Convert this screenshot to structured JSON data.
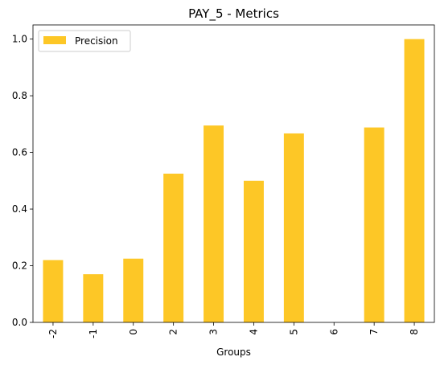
{
  "chart_data": {
    "type": "bar",
    "title": "PAY_5 - Metrics",
    "xlabel": "Groups",
    "ylabel": "",
    "categories": [
      "-2",
      "-1",
      "0",
      "2",
      "3",
      "4",
      "5",
      "6",
      "7",
      "8"
    ],
    "series": [
      {
        "name": "Precision",
        "values": [
          0.22,
          0.17,
          0.225,
          0.525,
          0.695,
          0.5,
          0.667,
          0.0,
          0.688,
          1.0
        ],
        "color": "#fdc726"
      }
    ],
    "ylim": [
      0,
      1.05
    ],
    "yticks": [
      "0.0",
      "0.2",
      "0.4",
      "0.6",
      "0.8",
      "1.0"
    ],
    "ytick_values": [
      0.0,
      0.2,
      0.4,
      0.6,
      0.8,
      1.0
    ],
    "grid": false,
    "legend_position": "upper-left",
    "xtick_rotation": "vertical"
  }
}
